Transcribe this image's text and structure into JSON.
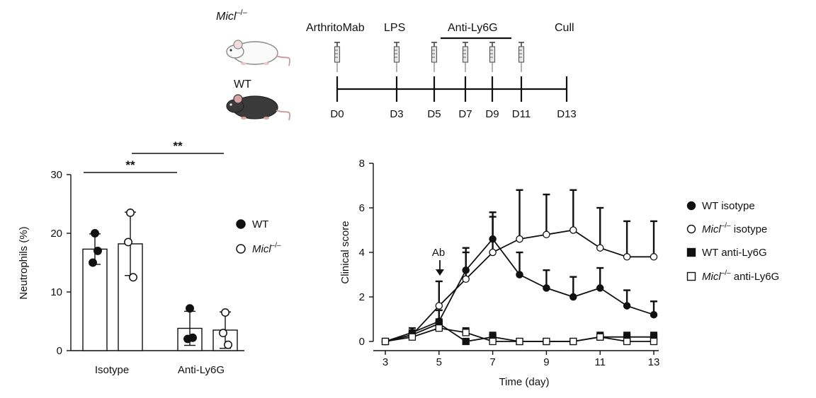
{
  "timeline": {
    "mice": [
      {
        "label": "Micl",
        "sup": "–/–",
        "color": "white"
      },
      {
        "label": "WT",
        "sup": "",
        "color": "black"
      }
    ],
    "days": [
      "D0",
      "D3",
      "D5",
      "D7",
      "D9",
      "D11",
      "D13"
    ],
    "day_values": [
      0,
      3,
      5,
      7,
      9,
      11,
      13
    ],
    "treatments": [
      {
        "label": "ArthritoMab",
        "days": [
          0
        ]
      },
      {
        "label": "LPS",
        "days": [
          3
        ]
      },
      {
        "label": "Anti-Ly6G",
        "days": [
          5,
          7,
          9,
          11
        ],
        "bar": [
          5,
          10
        ]
      },
      {
        "label": "Cull",
        "days": []
      }
    ],
    "injection_days": [
      0,
      3,
      5,
      7,
      9,
      11
    ]
  },
  "chart_data": [
    {
      "type": "bar",
      "title": "",
      "xlabel": "",
      "ylabel": "Neutrophils (%)",
      "ylim": [
        0,
        30
      ],
      "yticks": [
        "0",
        "10",
        "20",
        "30"
      ],
      "categories": [
        "Isotype",
        "Anti-Ly6G"
      ],
      "series": [
        {
          "name": "WT",
          "marker": "filled-circle",
          "values": [
            17.3,
            3.8
          ],
          "sd": [
            2.6,
            2.9
          ],
          "points": [
            [
              20.0,
              15.0,
              17.0
            ],
            [
              7.2,
              2.0,
              2.2
            ]
          ]
        },
        {
          "name": "Micl",
          "sup": "–/–",
          "marker": "open-circle",
          "values": [
            18.2,
            3.5
          ],
          "sd": [
            5.4,
            3.1
          ],
          "points": [
            [
              23.5,
              18.5,
              12.5
            ],
            [
              6.5,
              3.0,
              1.0
            ]
          ]
        }
      ],
      "significance": [
        {
          "label": "**",
          "from": [
            "Isotype",
            "WT"
          ],
          "to": [
            "Anti-Ly6G",
            "WT"
          ],
          "y": 30.3
        },
        {
          "label": "**",
          "from": [
            "Isotype",
            "Micl"
          ],
          "to": [
            "Anti-Ly6G",
            "Micl"
          ],
          "y": 33.5
        }
      ]
    },
    {
      "type": "line",
      "title": "",
      "xlabel": "Time (day)",
      "ylabel": "Clinical score",
      "xlim": [
        3,
        13
      ],
      "ylim": [
        0,
        8
      ],
      "xticks": [
        "3",
        "5",
        "7",
        "9",
        "11",
        "13"
      ],
      "yticks": [
        "0",
        "2",
        "4",
        "6",
        "8"
      ],
      "annotation": {
        "label": "Ab",
        "x": 5
      },
      "x": [
        3,
        4,
        5,
        6,
        7,
        8,
        9,
        10,
        11,
        12,
        13
      ],
      "series": [
        {
          "name": "WT isotype",
          "sup": "",
          "name_rest": "",
          "marker": "filled-circle",
          "values": [
            0,
            0.4,
            0.9,
            3.2,
            4.6,
            3.0,
            2.4,
            2.0,
            2.4,
            1.6,
            1.2
          ],
          "err": [
            0,
            0.2,
            0.5,
            1.0,
            1.2,
            1.0,
            0.8,
            0.9,
            0.9,
            0.7,
            0.6
          ]
        },
        {
          "name": "Micl",
          "sup": "–/–",
          "name_rest": " isotype",
          "marker": "open-circle",
          "values": [
            0,
            0.3,
            1.6,
            2.8,
            4.0,
            4.6,
            4.8,
            5.0,
            4.2,
            3.8,
            3.8
          ],
          "err": [
            0,
            0.2,
            1.1,
            1.2,
            1.6,
            2.2,
            1.8,
            1.8,
            1.8,
            1.6,
            1.6
          ]
        },
        {
          "name": "WT anti-Ly6G",
          "sup": "",
          "name_rest": "",
          "marker": "filled-square",
          "values": [
            0,
            0.3,
            0.8,
            0.0,
            0.2,
            0.0,
            0.0,
            0.0,
            0.2,
            0.2,
            0.2
          ],
          "err": [
            0,
            0.2,
            0.2,
            0.1,
            0.2,
            0.1,
            0.1,
            0.1,
            0.2,
            0.2,
            0.2
          ]
        },
        {
          "name": "Micl",
          "sup": "–/–",
          "name_rest": " anti-Ly6G",
          "marker": "open-square",
          "values": [
            0,
            0.2,
            0.6,
            0.4,
            0.0,
            0.0,
            0.0,
            0.0,
            0.2,
            0.0,
            0.0
          ],
          "err": [
            0,
            0.1,
            0.2,
            0.2,
            0.1,
            0.1,
            0.1,
            0.1,
            0.1,
            0.1,
            0.1
          ]
        }
      ]
    }
  ]
}
